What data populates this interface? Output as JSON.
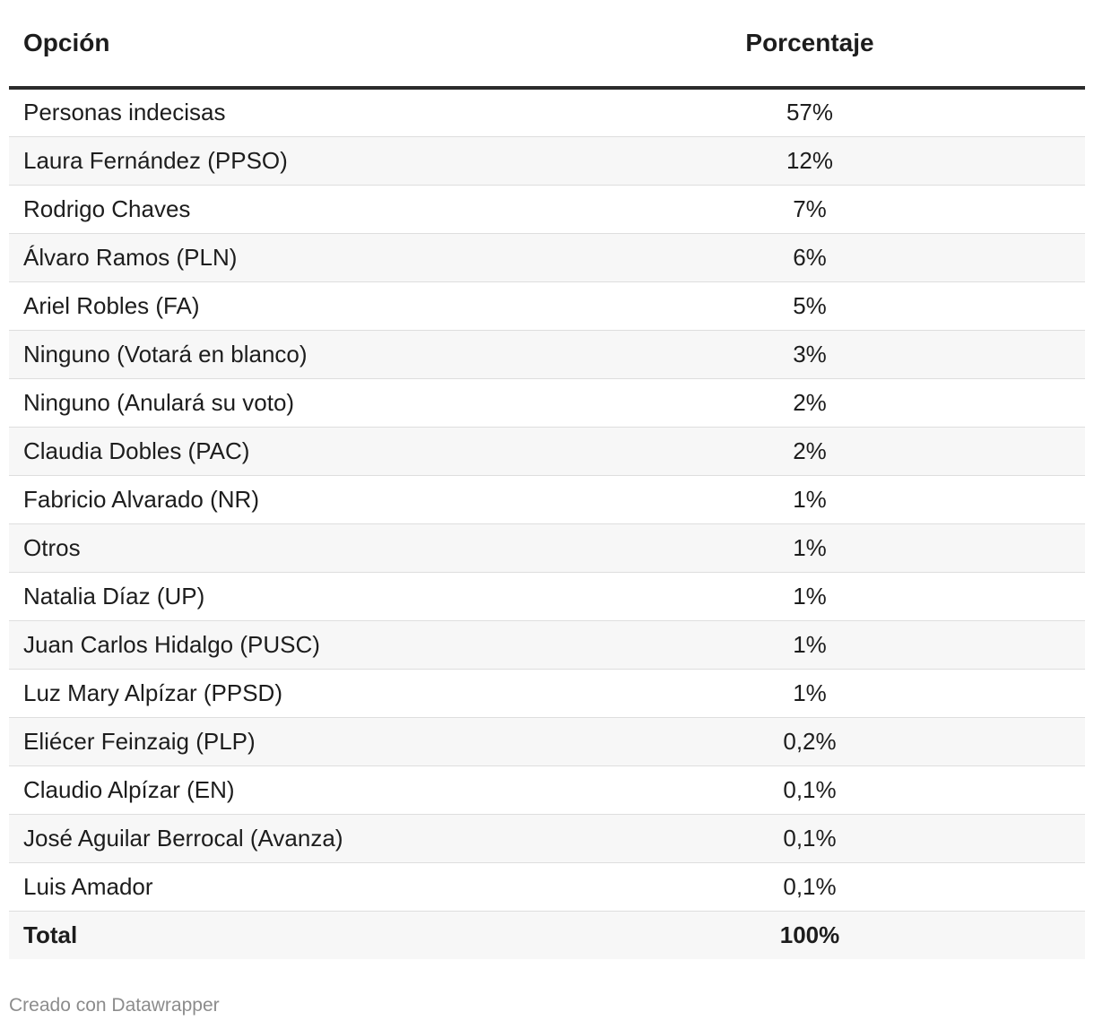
{
  "chart_data": {
    "type": "table",
    "columns": [
      "Opción",
      "Porcentaje"
    ],
    "rows": [
      {
        "label": "Personas indecisas",
        "value_text": "57%",
        "value": 57
      },
      {
        "label": "Laura Fernández (PPSO)",
        "value_text": "12%",
        "value": 12
      },
      {
        "label": "Rodrigo Chaves",
        "value_text": "7%",
        "value": 7
      },
      {
        "label": "Álvaro Ramos (PLN)",
        "value_text": "6%",
        "value": 6
      },
      {
        "label": "Ariel Robles (FA)",
        "value_text": "5%",
        "value": 5
      },
      {
        "label": "Ninguno (Votará en blanco)",
        "value_text": "3%",
        "value": 3
      },
      {
        "label": "Ninguno (Anulará su voto)",
        "value_text": "2%",
        "value": 2
      },
      {
        "label": "Claudia Dobles (PAC)",
        "value_text": "2%",
        "value": 2
      },
      {
        "label": "Fabricio Alvarado (NR)",
        "value_text": "1%",
        "value": 1
      },
      {
        "label": "Otros",
        "value_text": "1%",
        "value": 1
      },
      {
        "label": "Natalia Díaz (UP)",
        "value_text": "1%",
        "value": 1
      },
      {
        "label": "Juan Carlos Hidalgo (PUSC)",
        "value_text": "1%",
        "value": 1
      },
      {
        "label": "Luz Mary Alpízar (PPSD)",
        "value_text": "1%",
        "value": 1
      },
      {
        "label": "Eliécer Feinzaig (PLP)",
        "value_text": "0,2%",
        "value": 0.2
      },
      {
        "label": "Claudio Alpízar (EN)",
        "value_text": "0,1%",
        "value": 0.1
      },
      {
        "label": "José Aguilar Berrocal (Avanza)",
        "value_text": "0,1%",
        "value": 0.1
      },
      {
        "label": "Luis Amador",
        "value_text": "0,1%",
        "value": 0.1
      }
    ],
    "total": {
      "label": "Total",
      "value_text": "100%",
      "value": 100
    }
  },
  "footer": {
    "credit": "Creado con Datawrapper"
  },
  "colors": {
    "header_rule": "#2b2b2b",
    "row_stripe": "#f7f7f7",
    "row_divider": "#dedede",
    "credit_text": "#8c8c8c"
  }
}
